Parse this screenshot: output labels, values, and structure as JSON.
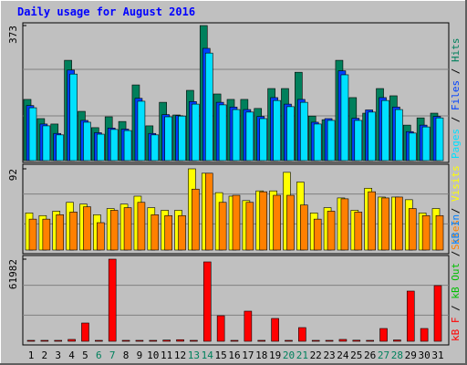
{
  "chart_data": [
    {
      "type": "bar",
      "title": "Daily usage for August 2016",
      "ylim": [
        0,
        373
      ],
      "yticks": [
        373
      ],
      "series": [
        {
          "name": "Hits",
          "color": "#00805c",
          "values": [
            169,
            116,
            101,
            277,
            136,
            91,
            121,
            108,
            209,
            96,
            161,
            126,
            194,
            373,
            184,
            169,
            169,
            144,
            199,
            199,
            244,
            123,
            113,
            277,
            174,
            131,
            199,
            179,
            98,
            118,
            131
          ]
        },
        {
          "name": "Files",
          "color": "#0040ff",
          "values": [
            152,
            101,
            75,
            250,
            111,
            77,
            90,
            87,
            172,
            75,
            127,
            124,
            163,
            310,
            161,
            148,
            141,
            122,
            174,
            156,
            169,
            106,
            116,
            248,
            117,
            140,
            174,
            148,
            80,
            98,
            122
          ]
        },
        {
          "name": "Pages",
          "color": "#00e0ff",
          "values": [
            146,
            96,
            71,
            239,
            106,
            73,
            86,
            83,
            164,
            71,
            121,
            123,
            156,
            297,
            154,
            141,
            134,
            116,
            166,
            149,
            161,
            101,
            111,
            237,
            111,
            134,
            166,
            141,
            76,
            93,
            118
          ]
        }
      ]
    },
    {
      "type": "bar",
      "ylim": [
        0,
        92
      ],
      "yticks": [
        92
      ],
      "series": [
        {
          "name": "Visits",
          "color": "#ffff00",
          "values": [
            42,
            39,
            44,
            54,
            52,
            40,
            47,
            52,
            61,
            48,
            45,
            45,
            92,
            87,
            65,
            61,
            56,
            67,
            67,
            88,
            77,
            42,
            48,
            59,
            45,
            70,
            60,
            60,
            57,
            42,
            47
          ]
        },
        {
          "name": "Sites",
          "color": "#ff8000",
          "values": [
            35,
            35,
            40,
            43,
            49,
            31,
            45,
            48,
            54,
            40,
            39,
            39,
            69,
            87,
            54,
            62,
            54,
            66,
            62,
            62,
            51,
            35,
            44,
            58,
            43,
            66,
            59,
            60,
            47,
            39,
            39
          ]
        }
      ]
    },
    {
      "type": "bar",
      "ylim": [
        0,
        61982
      ],
      "yticks": [
        61982
      ],
      "categories": [
        "1",
        "2",
        "3",
        "4",
        "5",
        "6",
        "7",
        "8",
        "9",
        "10",
        "11",
        "12",
        "13",
        "14",
        "15",
        "16",
        "17",
        "18",
        "19",
        "20",
        "21",
        "22",
        "23",
        "24",
        "25",
        "26",
        "27",
        "28",
        "29",
        "30",
        "31"
      ],
      "category_colors": [
        "#000000",
        "#000000",
        "#000000",
        "#000000",
        "#000000",
        "#00805c",
        "#00805c",
        "#000000",
        "#000000",
        "#000000",
        "#000000",
        "#000000",
        "#00805c",
        "#00805c",
        "#000000",
        "#000000",
        "#000000",
        "#000000",
        "#000000",
        "#00805c",
        "#00805c",
        "#000000",
        "#000000",
        "#000000",
        "#000000",
        "#000000",
        "#00805c",
        "#00805c",
        "#000000",
        "#000000",
        "#000000"
      ],
      "legend": [
        {
          "name": "kB Out",
          "color": "#00c000"
        },
        {
          "name": "kB In",
          "color": "#0080ff"
        }
      ],
      "series": [
        {
          "name": "kB F",
          "color": "#ff0000",
          "values": [
            600,
            500,
            500,
            1400,
            13774,
            500,
            61982,
            700,
            600,
            500,
            900,
            1200,
            700,
            59917,
            19284,
            600,
            22727,
            700,
            17218,
            600,
            10331,
            500,
            500,
            1400,
            800,
            500,
            9642,
            1000,
            37879,
            9642,
            42011
          ]
        }
      ]
    }
  ]
}
